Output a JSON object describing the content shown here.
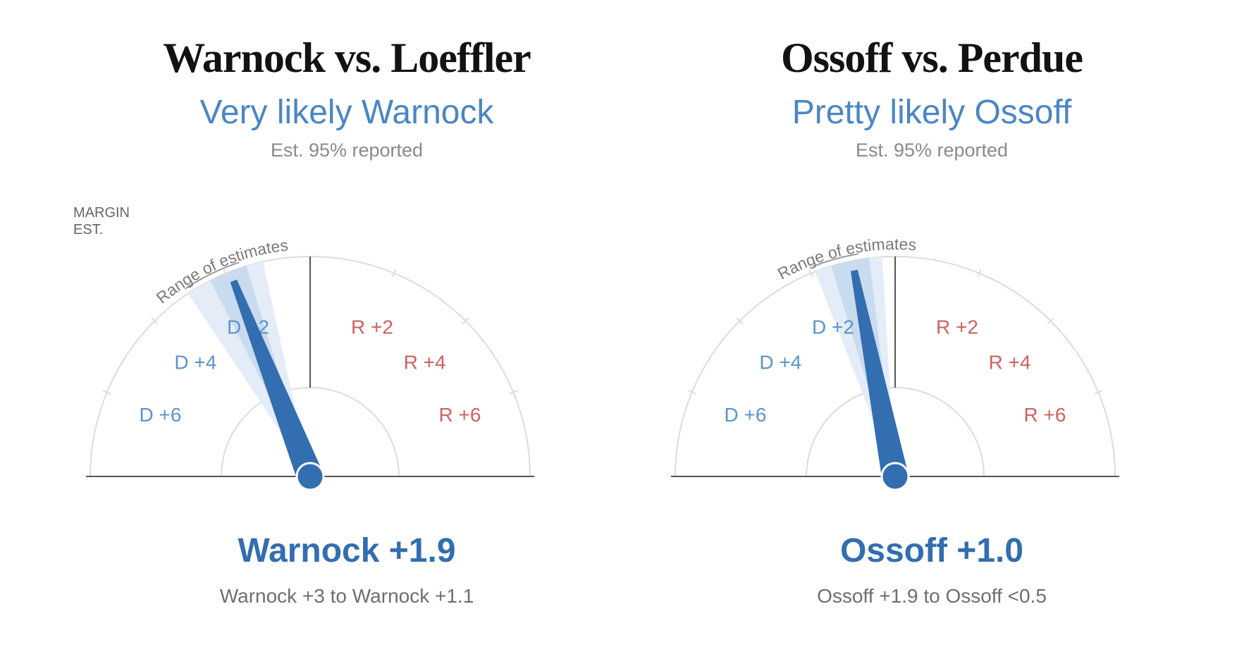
{
  "chart_data": [
    {
      "type": "gauge",
      "title": "Warnock vs. Loeffler",
      "subtitle": "Very likely Warnock",
      "reported": "Est. 95% reported",
      "axis_label": [
        "MARGIN",
        "EST."
      ],
      "range_label": "Range of estimates",
      "scale_min": -8,
      "scale_max": 8,
      "tick_labels": [
        {
          "value": -6,
          "label": "D +6"
        },
        {
          "value": -4,
          "label": "D +4"
        },
        {
          "value": -2,
          "label": "D +2"
        },
        {
          "value": 2,
          "label": "R +2"
        },
        {
          "value": 4,
          "label": "R +4"
        },
        {
          "value": 6,
          "label": "R +6"
        }
      ],
      "estimate_margin": -1.9,
      "range_outer": [
        -3.0,
        -1.1
      ],
      "range_inner": [
        -2.4,
        -1.5
      ],
      "leader_text": "Warnock +1.9",
      "range_text": "Warnock +3 to Warnock +1.1"
    },
    {
      "type": "gauge",
      "title": "Ossoff vs. Perdue",
      "subtitle": "Pretty likely Ossoff",
      "reported": "Est. 95% reported",
      "range_label": "Range of estimates",
      "scale_min": -8,
      "scale_max": 8,
      "tick_labels": [
        {
          "value": -6,
          "label": "D +6"
        },
        {
          "value": -4,
          "label": "D +4"
        },
        {
          "value": -2,
          "label": "D +2"
        },
        {
          "value": 2,
          "label": "R +2"
        },
        {
          "value": 4,
          "label": "R +4"
        },
        {
          "value": 6,
          "label": "R +6"
        }
      ],
      "estimate_margin": -1.0,
      "range_outer": [
        -1.9,
        -0.3
      ],
      "range_inner": [
        -1.5,
        -0.6
      ],
      "leader_text": "Ossoff +1.0",
      "range_text": "Ossoff +1.9 to Ossoff <0.5"
    }
  ],
  "colors": {
    "democrat": "#5b93cf",
    "republican": "#d06161",
    "needle": "#326eb0",
    "range_outer": "#e4edf7",
    "range_inner": "#c9dbee",
    "axis": "#555555",
    "arc": "#dcdcdc"
  }
}
